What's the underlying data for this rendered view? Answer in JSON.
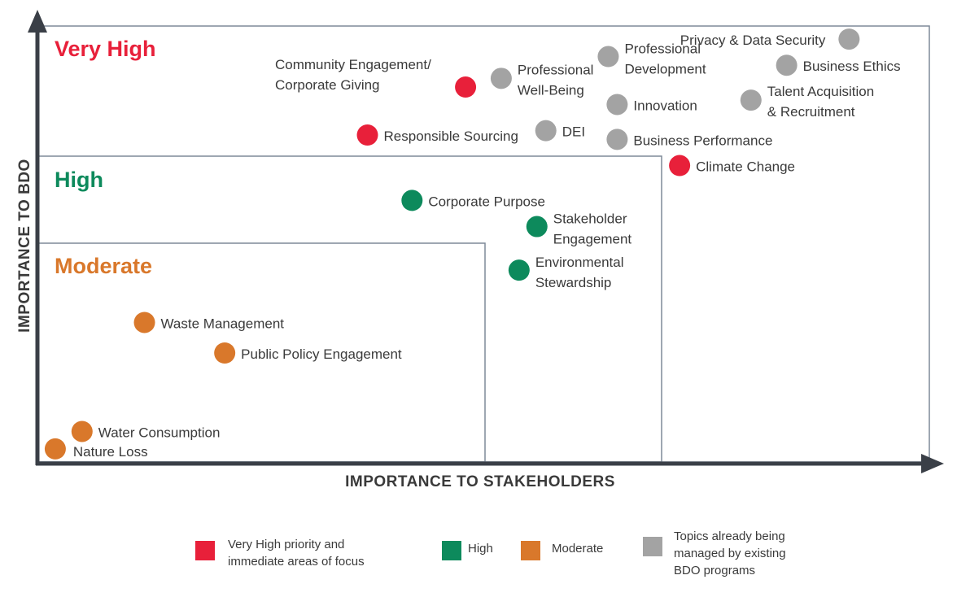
{
  "chart_data": {
    "type": "scatter",
    "xlabel": "IMPORTANCE TO STAKEHOLDERS",
    "ylabel": "IMPORTANCE TO BDO",
    "zones": [
      {
        "key": "very_high",
        "label": "Very High",
        "color": "#e8203a"
      },
      {
        "key": "high",
        "label": "High",
        "color": "#0d8a5c"
      },
      {
        "key": "moderate",
        "label": "Moderate",
        "color": "#d9782b"
      }
    ],
    "category_colors": {
      "very_high": "#e8203a",
      "high": "#0d8a5c",
      "moderate": "#d9782b",
      "managed": "#a3a3a3"
    },
    "points": [
      {
        "label": "Privacy & Data Security",
        "category": "managed",
        "x": 91,
        "y": 97
      },
      {
        "label": "Business Ethics",
        "category": "managed",
        "x": 84,
        "y": 91
      },
      {
        "label": "Professional Development",
        "category": "managed",
        "x": 64,
        "y": 93
      },
      {
        "label": "Professional Well-Being",
        "category": "managed",
        "x": 52,
        "y": 88
      },
      {
        "label": "Innovation",
        "category": "managed",
        "x": 65,
        "y": 82
      },
      {
        "label": "Talent Acquisition & Recruitment",
        "category": "managed",
        "x": 80,
        "y": 83
      },
      {
        "label": "DEI",
        "category": "managed",
        "x": 57,
        "y": 76
      },
      {
        "label": "Business Performance",
        "category": "managed",
        "x": 65,
        "y": 74
      },
      {
        "label": "Community Engagement/ Corporate Giving",
        "category": "very_high",
        "x": 48,
        "y": 86
      },
      {
        "label": "Responsible Sourcing",
        "category": "very_high",
        "x": 37,
        "y": 75
      },
      {
        "label": "Climate Change",
        "category": "very_high",
        "x": 72,
        "y": 68
      },
      {
        "label": "Corporate Purpose",
        "category": "high",
        "x": 42,
        "y": 60
      },
      {
        "label": "Stakeholder Engagement",
        "category": "high",
        "x": 56,
        "y": 54
      },
      {
        "label": "Environmental Stewardship",
        "category": "high",
        "x": 54,
        "y": 44
      },
      {
        "label": "Waste Management",
        "category": "moderate",
        "x": 12,
        "y": 32
      },
      {
        "label": "Public Policy Engagement",
        "category": "moderate",
        "x": 21,
        "y": 25
      },
      {
        "label": "Water Consumption",
        "category": "moderate",
        "x": 5,
        "y": 7
      },
      {
        "label": "Nature Loss",
        "category": "moderate",
        "x": 2,
        "y": 3
      }
    ],
    "legend": [
      {
        "label": "Very High priority and\nimmediate areas of focus",
        "category": "very_high"
      },
      {
        "label": "High",
        "category": "high"
      },
      {
        "label": "Moderate",
        "category": "moderate"
      },
      {
        "label": "Topics already being\nmanaged by existing\nBDO programs",
        "category": "managed"
      }
    ]
  }
}
